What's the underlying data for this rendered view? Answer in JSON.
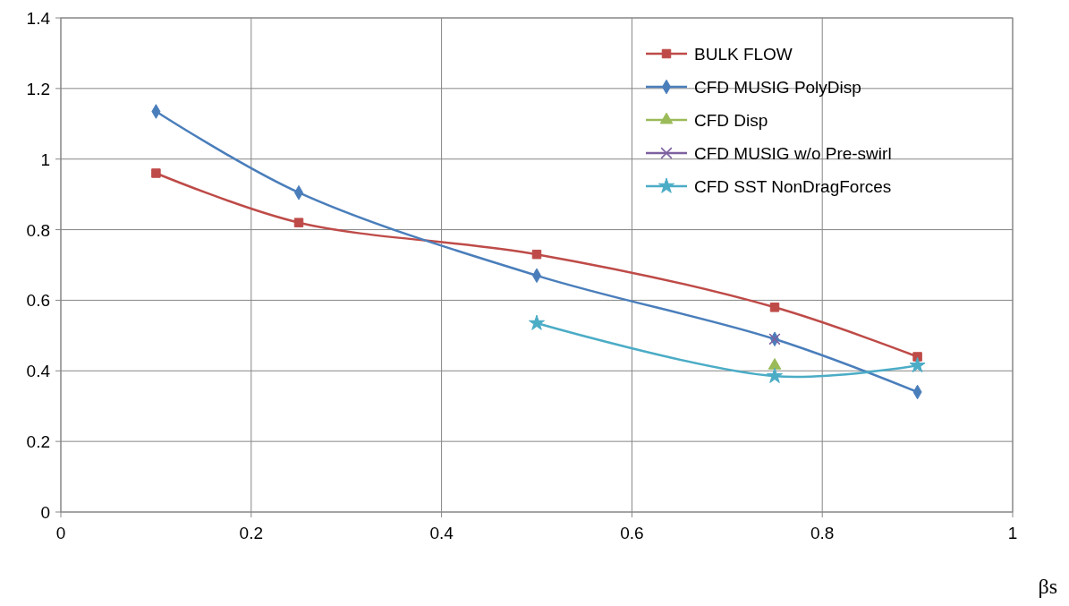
{
  "chart_data": {
    "type": "line",
    "xlabel": "βs",
    "xlim": [
      0,
      1
    ],
    "xticks": [
      0,
      0.2,
      0.4,
      0.6,
      0.8,
      1
    ],
    "ylim": [
      0,
      1.4
    ],
    "yticks": [
      0,
      0.2,
      0.4,
      0.6,
      0.8,
      1,
      1.2,
      1.4
    ],
    "grid": true,
    "legend": "top right",
    "series": [
      {
        "name": "BULK FLOW",
        "color": "#be4b48",
        "marker": "square",
        "x": [
          0.1,
          0.25,
          0.5,
          0.75,
          0.9
        ],
        "values": [
          0.96,
          0.82,
          0.73,
          0.58,
          0.44
        ]
      },
      {
        "name": "CFD MUSIG PolyDisp",
        "color": "#4a7ebb",
        "marker": "diamond",
        "x": [
          0.1,
          0.25,
          0.5,
          0.75,
          0.9
        ],
        "values": [
          1.135,
          0.905,
          0.67,
          0.49,
          0.34
        ]
      },
      {
        "name": "CFD Disp",
        "color": "#9bbb59",
        "marker": "triangle",
        "x": [
          0.75
        ],
        "values": [
          0.415
        ]
      },
      {
        "name": "CFD MUSIG w/o Pre-swirl",
        "color": "#7d60a0",
        "marker": "cross",
        "x": [
          0.75
        ],
        "values": [
          0.49
        ]
      },
      {
        "name": "CFD SST NonDragForces",
        "color": "#4bacc6",
        "marker": "star",
        "x": [
          0.5,
          0.75,
          0.9
        ],
        "values": [
          0.535,
          0.385,
          0.415
        ]
      }
    ]
  }
}
